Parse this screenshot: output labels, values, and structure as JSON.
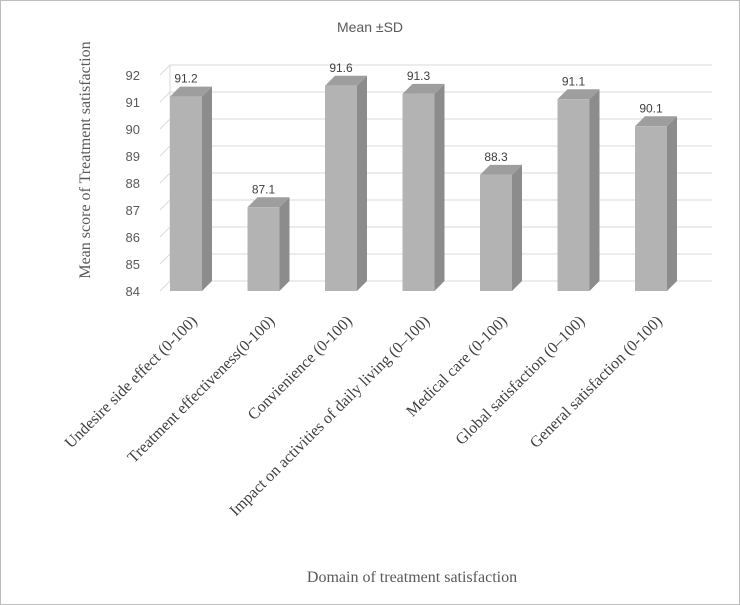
{
  "chart_data": {
    "type": "bar",
    "title": "Mean ±SD",
    "xlabel": "Domain of treatment satisfaction",
    "ylabel": "Mean score of Treatment satisfaction",
    "ylim": [
      84,
      92
    ],
    "yticks": [
      "84",
      "85",
      "86",
      "87",
      "88",
      "89",
      "90",
      "91",
      "92"
    ],
    "grid": true,
    "categories": [
      "Undesire side effect (0-100)",
      "Treatment effectiveness(0-100)",
      "Convienience (0-100)",
      "Impact on activities of daily living (0–100)",
      "Medical care (0-100)",
      "Global satisfaction (0–100)",
      "General satisfaction (0-100)"
    ],
    "values": [
      91.2,
      87.1,
      91.6,
      91.3,
      88.3,
      91.1,
      90.1
    ],
    "data_labels": [
      "91.2",
      "87.1",
      "91.6",
      "91.3",
      "88.3",
      "91.1",
      "90.1"
    ],
    "colors": {
      "bar_front": "#b3b3b3",
      "bar_side": "#8c8c8c",
      "bar_top": "#9e9e9e",
      "grid": "#d9d9d9"
    }
  }
}
